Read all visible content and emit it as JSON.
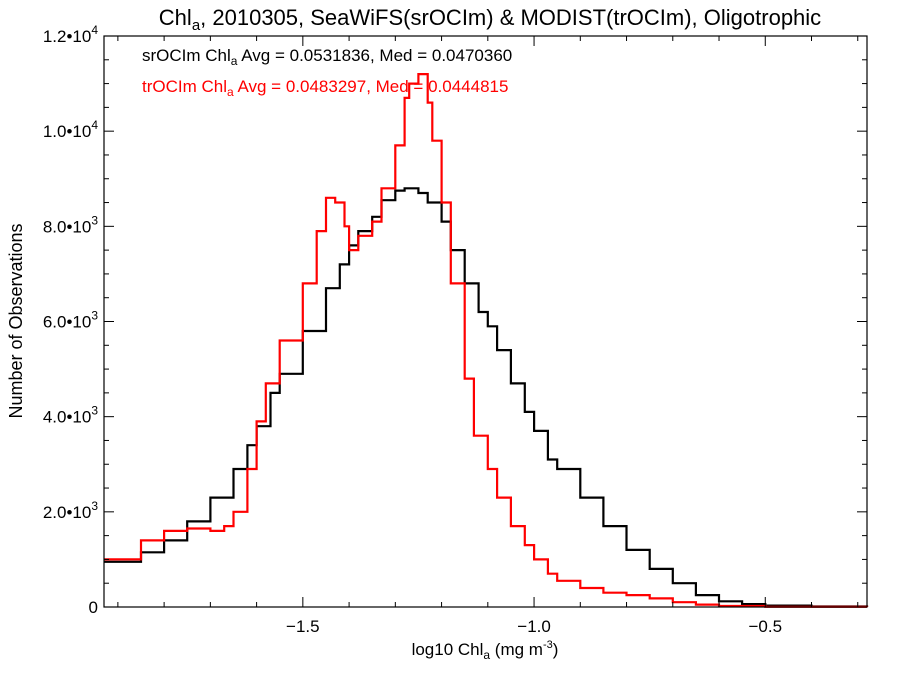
{
  "chart_data": {
    "type": "line",
    "title": {
      "pre": "Chl",
      "sub": "a",
      "post": ", 2010305, SeaWiFS(srOCIm) & MODIST(trOCIm), Oligotrophic"
    },
    "xlabel": {
      "pre": "log10 Chl",
      "sub": "a",
      "mid": " (mg m",
      "sup": "-3",
      "post": ")"
    },
    "ylabel": "Number of Observations",
    "xlim": [
      -1.93,
      -0.28
    ],
    "ylim": [
      0,
      12000
    ],
    "xticks": [
      {
        "value": -1.5,
        "label": "−1.5"
      },
      {
        "value": -1.0,
        "label": "−1.0"
      },
      {
        "value": -0.5,
        "label": "−0.5"
      }
    ],
    "yticks": [
      {
        "value": 0,
        "mant": "0",
        "exp": ""
      },
      {
        "value": 2000,
        "mant": "2.0•10",
        "exp": "3"
      },
      {
        "value": 4000,
        "mant": "4.0•10",
        "exp": "3"
      },
      {
        "value": 6000,
        "mant": "6.0•10",
        "exp": "3"
      },
      {
        "value": 8000,
        "mant": "8.0•10",
        "exp": "3"
      },
      {
        "value": 10000,
        "mant": "1.0•10",
        "exp": "4"
      },
      {
        "value": 12000,
        "mant": "1.2•10",
        "exp": "4"
      }
    ],
    "grid": false,
    "annotations": [
      {
        "pre": "srOCIm Chl",
        "sub": "a",
        "post": " Avg = 0.0531836, Med = 0.0470360",
        "color": "#000000"
      },
      {
        "pre": "trOCIm Chl",
        "sub": "a",
        "post": " Avg = 0.0483297, Med = 0.0444815",
        "color": "#ff0000"
      }
    ],
    "series": [
      {
        "color": "#000000",
        "style": "step",
        "x": [
          -1.93,
          -1.85,
          -1.8,
          -1.75,
          -1.7,
          -1.65,
          -1.62,
          -1.6,
          -1.57,
          -1.55,
          -1.5,
          -1.45,
          -1.42,
          -1.4,
          -1.38,
          -1.35,
          -1.33,
          -1.3,
          -1.28,
          -1.25,
          -1.23,
          -1.2,
          -1.18,
          -1.15,
          -1.12,
          -1.1,
          -1.08,
          -1.05,
          -1.02,
          -1.0,
          -0.97,
          -0.95,
          -0.9,
          -0.85,
          -0.8,
          -0.75,
          -0.7,
          -0.65,
          -0.6,
          -0.55,
          -0.5,
          -0.4,
          -0.28
        ],
        "y": [
          950,
          1150,
          1400,
          1800,
          2300,
          2900,
          3400,
          3800,
          4500,
          4900,
          5800,
          6700,
          7200,
          7600,
          7900,
          8200,
          8550,
          8750,
          8800,
          8700,
          8500,
          8100,
          7500,
          6800,
          6200,
          5900,
          5400,
          4700,
          4100,
          3700,
          3100,
          2900,
          2300,
          1700,
          1200,
          800,
          500,
          250,
          120,
          60,
          30,
          10,
          0
        ]
      },
      {
        "color": "#ff0000",
        "style": "step",
        "x": [
          -1.93,
          -1.85,
          -1.8,
          -1.75,
          -1.7,
          -1.67,
          -1.65,
          -1.62,
          -1.6,
          -1.58,
          -1.55,
          -1.5,
          -1.47,
          -1.45,
          -1.43,
          -1.41,
          -1.4,
          -1.38,
          -1.35,
          -1.33,
          -1.3,
          -1.28,
          -1.27,
          -1.25,
          -1.23,
          -1.22,
          -1.2,
          -1.18,
          -1.15,
          -1.13,
          -1.1,
          -1.08,
          -1.05,
          -1.02,
          -1.0,
          -0.97,
          -0.95,
          -0.9,
          -0.85,
          -0.8,
          -0.75,
          -0.7,
          -0.65,
          -0.6,
          -0.5,
          -0.28
        ],
        "y": [
          1000,
          1400,
          1600,
          1650,
          1600,
          1700,
          2000,
          2900,
          3900,
          4700,
          5600,
          6800,
          7900,
          8600,
          8500,
          8000,
          7500,
          7800,
          8100,
          8800,
          9700,
          10700,
          11000,
          11200,
          10600,
          9800,
          8500,
          6800,
          4800,
          3600,
          2900,
          2300,
          1700,
          1300,
          1000,
          700,
          550,
          400,
          300,
          250,
          180,
          100,
          50,
          20,
          5,
          0
        ]
      }
    ]
  }
}
